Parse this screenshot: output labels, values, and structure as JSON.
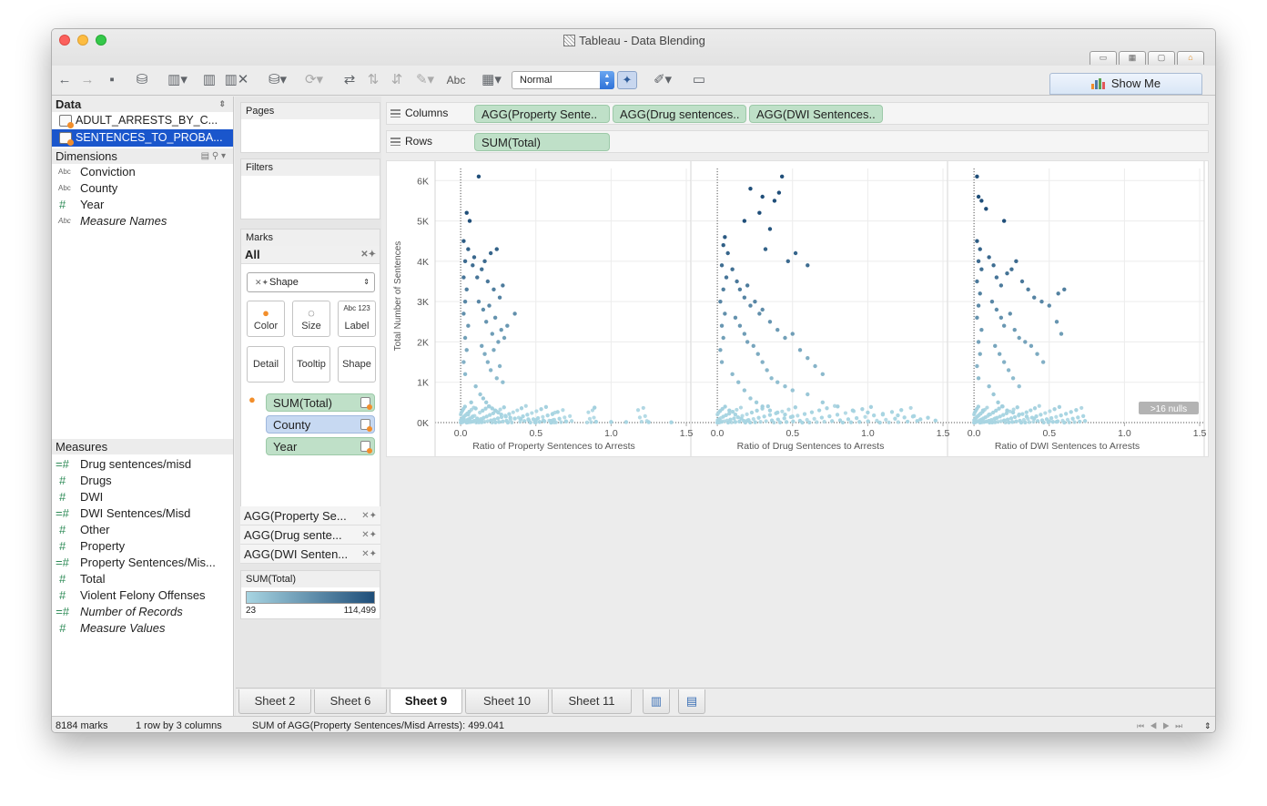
{
  "window": {
    "title": "Tableau - Data Blending"
  },
  "toolbar": {
    "mark_size_select": "Normal",
    "abc_label": "Abc",
    "show_me": "Show Me"
  },
  "data_pane": {
    "header": "Data",
    "sources": [
      {
        "name": "ADULT_ARRESTS_BY_C...",
        "selected": false
      },
      {
        "name": "SENTENCES_TO_PROBA...",
        "selected": true
      }
    ],
    "dimensions_header": "Dimensions",
    "dimensions": [
      {
        "type": "Abc",
        "label": "Conviction"
      },
      {
        "type": "Abc",
        "label": "County"
      },
      {
        "type": "#",
        "label": "Year"
      },
      {
        "type": "Abc",
        "label": "Measure Names"
      }
    ],
    "measures_header": "Measures",
    "measures": [
      {
        "type": "=#",
        "label": "Drug sentences/misd"
      },
      {
        "type": "#",
        "label": "Drugs"
      },
      {
        "type": "#",
        "label": "DWI"
      },
      {
        "type": "=#",
        "label": "DWI Sentences/Misd"
      },
      {
        "type": "#",
        "label": "Other"
      },
      {
        "type": "#",
        "label": "Property"
      },
      {
        "type": "=#",
        "label": "Property Sentences/Mis..."
      },
      {
        "type": "#",
        "label": "Total"
      },
      {
        "type": "#",
        "label": "Violent Felony Offenses"
      },
      {
        "type": "=#",
        "label": "Number of Records"
      },
      {
        "type": "#",
        "label": "Measure Values"
      }
    ]
  },
  "cards": {
    "pages": "Pages",
    "filters": "Filters",
    "marks": "Marks",
    "marks_all": "All",
    "mark_type": "Shape",
    "buttons": [
      "Color",
      "Size",
      "Label",
      "Detail",
      "Tooltip",
      "Shape"
    ],
    "label_icon": "Abc 123",
    "mark_pills": [
      "SUM(Total)",
      "County",
      "Year"
    ],
    "agg_rows": [
      "AGG(Property Se...",
      "AGG(Drug sente...",
      "AGG(DWI Senten..."
    ],
    "legend_title": "SUM(Total)",
    "legend_min": "23",
    "legend_max": "114,499",
    "legend_colors": [
      "#a8d5e2",
      "#1f4e79"
    ]
  },
  "shelves": {
    "columns_label": "Columns",
    "columns": [
      "AGG(Property Sente..",
      "AGG(Drug sentences..",
      "AGG(DWI Sentences.."
    ],
    "rows_label": "Rows",
    "rows": [
      "SUM(Total)"
    ]
  },
  "chart_data": {
    "type": "scatter",
    "ylabel": "Total Number of Sentences",
    "y_ticks": [
      "6K",
      "5K",
      "4K",
      "3K",
      "2K",
      "1K",
      "0K"
    ],
    "ylim": [
      0,
      6300
    ],
    "x_ticks": [
      "0.0",
      "0.5",
      "1.0",
      "1.5"
    ],
    "xlim": [
      -0.17,
      1.53
    ],
    "grid": true,
    "panels": [
      {
        "xlabel": "Ratio of Property Sentences to Arrests",
        "points": [
          [
            0.12,
            6100
          ],
          [
            0.04,
            5200
          ],
          [
            0.06,
            5000
          ],
          [
            0.02,
            4500
          ],
          [
            0.05,
            4300
          ],
          [
            0.03,
            4000
          ],
          [
            0.08,
            3900
          ],
          [
            0.02,
            3600
          ],
          [
            0.04,
            3300
          ],
          [
            0.03,
            3000
          ],
          [
            0.02,
            2700
          ],
          [
            0.05,
            2400
          ],
          [
            0.03,
            2100
          ],
          [
            0.04,
            1800
          ],
          [
            0.02,
            1500
          ],
          [
            0.03,
            1200
          ],
          [
            0.09,
            4100
          ],
          [
            0.11,
            3600
          ],
          [
            0.14,
            3800
          ],
          [
            0.16,
            4000
          ],
          [
            0.18,
            3500
          ],
          [
            0.2,
            4200
          ],
          [
            0.22,
            3300
          ],
          [
            0.24,
            4300
          ],
          [
            0.26,
            3100
          ],
          [
            0.28,
            3400
          ],
          [
            0.36,
            2700
          ],
          [
            0.12,
            3000
          ],
          [
            0.15,
            2800
          ],
          [
            0.17,
            2500
          ],
          [
            0.19,
            2900
          ],
          [
            0.21,
            2200
          ],
          [
            0.23,
            2600
          ],
          [
            0.25,
            2000
          ],
          [
            0.27,
            2300
          ],
          [
            0.29,
            2100
          ],
          [
            0.31,
            2400
          ],
          [
            0.14,
            1900
          ],
          [
            0.16,
            1700
          ],
          [
            0.18,
            1500
          ],
          [
            0.2,
            1300
          ],
          [
            0.22,
            1800
          ],
          [
            0.24,
            1100
          ],
          [
            0.26,
            1400
          ],
          [
            0.28,
            1000
          ],
          [
            0.1,
            900
          ],
          [
            0.13,
            700
          ],
          [
            0.15,
            600
          ],
          [
            0.17,
            500
          ],
          [
            0.19,
            400
          ],
          [
            0.21,
            350
          ],
          [
            0.23,
            300
          ],
          [
            0.25,
            250
          ],
          [
            0.27,
            200
          ],
          [
            0.3,
            150
          ],
          [
            0.33,
            120
          ],
          [
            0.36,
            100
          ],
          [
            0.4,
            90
          ],
          [
            0.45,
            80
          ],
          [
            0.5,
            60
          ],
          [
            0.55,
            50
          ],
          [
            0.6,
            40
          ],
          [
            0.7,
            30
          ],
          [
            0.9,
            20
          ],
          [
            1.0,
            15
          ],
          [
            1.1,
            12
          ],
          [
            1.25,
            10
          ],
          [
            1.4,
            8
          ],
          [
            0.89,
            370
          ],
          [
            0.05,
            200
          ],
          [
            0.08,
            150
          ],
          [
            0.11,
            100
          ],
          [
            0.14,
            80
          ],
          [
            0.06,
            60
          ],
          [
            0.09,
            40
          ],
          [
            0.12,
            30
          ],
          [
            0.07,
            500
          ],
          [
            0.1,
            350
          ],
          [
            0.02,
            100
          ]
        ]
      },
      {
        "xlabel": "Ratio of Drug Sentences to Arrests",
        "points": [
          [
            0.43,
            6100
          ],
          [
            0.41,
            5700
          ],
          [
            0.38,
            5500
          ],
          [
            0.22,
            5800
          ],
          [
            0.3,
            5600
          ],
          [
            0.18,
            5000
          ],
          [
            0.28,
            5200
          ],
          [
            0.35,
            4800
          ],
          [
            0.32,
            4300
          ],
          [
            0.52,
            4200
          ],
          [
            0.47,
            4000
          ],
          [
            0.6,
            3900
          ],
          [
            0.05,
            4600
          ],
          [
            0.04,
            4400
          ],
          [
            0.07,
            4200
          ],
          [
            0.03,
            3900
          ],
          [
            0.06,
            3600
          ],
          [
            0.04,
            3300
          ],
          [
            0.02,
            3000
          ],
          [
            0.05,
            2700
          ],
          [
            0.03,
            2400
          ],
          [
            0.04,
            2100
          ],
          [
            0.02,
            1800
          ],
          [
            0.03,
            1500
          ],
          [
            0.1,
            3800
          ],
          [
            0.13,
            3500
          ],
          [
            0.15,
            3300
          ],
          [
            0.18,
            3100
          ],
          [
            0.2,
            3400
          ],
          [
            0.22,
            2900
          ],
          [
            0.25,
            3000
          ],
          [
            0.28,
            2700
          ],
          [
            0.3,
            2800
          ],
          [
            0.35,
            2500
          ],
          [
            0.4,
            2300
          ],
          [
            0.45,
            2100
          ],
          [
            0.5,
            2200
          ],
          [
            0.55,
            1800
          ],
          [
            0.6,
            1600
          ],
          [
            0.65,
            1400
          ],
          [
            0.7,
            1200
          ],
          [
            0.12,
            2600
          ],
          [
            0.15,
            2400
          ],
          [
            0.18,
            2200
          ],
          [
            0.2,
            2000
          ],
          [
            0.24,
            1900
          ],
          [
            0.27,
            1700
          ],
          [
            0.3,
            1500
          ],
          [
            0.33,
            1300
          ],
          [
            0.36,
            1100
          ],
          [
            0.4,
            1000
          ],
          [
            0.45,
            900
          ],
          [
            0.5,
            800
          ],
          [
            0.6,
            700
          ],
          [
            0.7,
            500
          ],
          [
            0.8,
            400
          ],
          [
            0.9,
            300
          ],
          [
            1.0,
            250
          ],
          [
            1.1,
            200
          ],
          [
            1.2,
            180
          ],
          [
            1.3,
            150
          ],
          [
            1.4,
            120
          ],
          [
            0.1,
            1200
          ],
          [
            0.14,
            1000
          ],
          [
            0.18,
            800
          ],
          [
            0.22,
            600
          ],
          [
            0.26,
            500
          ],
          [
            0.3,
            400
          ],
          [
            0.35,
            300
          ],
          [
            0.4,
            250
          ],
          [
            0.45,
            200
          ],
          [
            0.5,
            150
          ],
          [
            0.08,
            300
          ],
          [
            0.12,
            200
          ],
          [
            0.16,
            100
          ],
          [
            0.2,
            50
          ],
          [
            1.45,
            50
          ],
          [
            1.35,
            80
          ]
        ]
      },
      {
        "xlabel": "Ratio of DWI Sentences to Arrests",
        "points": [
          [
            0.02,
            6100
          ],
          [
            0.03,
            5600
          ],
          [
            0.05,
            5500
          ],
          [
            0.08,
            5300
          ],
          [
            0.2,
            5000
          ],
          [
            0.02,
            4500
          ],
          [
            0.04,
            4300
          ],
          [
            0.03,
            4000
          ],
          [
            0.05,
            3800
          ],
          [
            0.02,
            3500
          ],
          [
            0.04,
            3200
          ],
          [
            0.03,
            2900
          ],
          [
            0.02,
            2600
          ],
          [
            0.05,
            2300
          ],
          [
            0.03,
            2000
          ],
          [
            0.04,
            1700
          ],
          [
            0.02,
            1400
          ],
          [
            0.03,
            1100
          ],
          [
            0.1,
            4100
          ],
          [
            0.13,
            3900
          ],
          [
            0.15,
            3600
          ],
          [
            0.18,
            3400
          ],
          [
            0.22,
            3700
          ],
          [
            0.25,
            3800
          ],
          [
            0.28,
            4000
          ],
          [
            0.32,
            3500
          ],
          [
            0.36,
            3300
          ],
          [
            0.4,
            3100
          ],
          [
            0.45,
            3000
          ],
          [
            0.5,
            2900
          ],
          [
            0.56,
            3200
          ],
          [
            0.6,
            3300
          ],
          [
            0.55,
            2500
          ],
          [
            0.58,
            2200
          ],
          [
            0.12,
            3000
          ],
          [
            0.15,
            2800
          ],
          [
            0.18,
            2600
          ],
          [
            0.2,
            2400
          ],
          [
            0.24,
            2700
          ],
          [
            0.27,
            2300
          ],
          [
            0.3,
            2100
          ],
          [
            0.34,
            2000
          ],
          [
            0.38,
            1900
          ],
          [
            0.42,
            1700
          ],
          [
            0.46,
            1500
          ],
          [
            0.14,
            1900
          ],
          [
            0.17,
            1700
          ],
          [
            0.2,
            1500
          ],
          [
            0.23,
            1300
          ],
          [
            0.26,
            1100
          ],
          [
            0.3,
            900
          ],
          [
            0.1,
            900
          ],
          [
            0.13,
            700
          ],
          [
            0.16,
            500
          ],
          [
            0.19,
            400
          ],
          [
            0.22,
            300
          ],
          [
            0.26,
            250
          ],
          [
            0.3,
            200
          ],
          [
            0.35,
            150
          ],
          [
            0.4,
            100
          ],
          [
            0.06,
            300
          ],
          [
            0.1,
            200
          ],
          [
            0.14,
            100
          ],
          [
            0.2,
            50
          ],
          [
            0.5,
            30
          ],
          [
            0.55,
            20
          ]
        ]
      }
    ],
    "nulls_badge": ">16 nulls"
  },
  "sheet_tabs": [
    {
      "label": "Sheet 2",
      "active": false
    },
    {
      "label": "Sheet 6",
      "active": false
    },
    {
      "label": "Sheet 9",
      "active": true
    },
    {
      "label": "Sheet 10",
      "active": false
    },
    {
      "label": "Sheet 11",
      "active": false
    }
  ],
  "status_bar": {
    "marks": "8184 marks",
    "layout": "1 row by 3 columns",
    "summary": "SUM of AGG(Property Sentences/Misd Arrests): 499.041"
  }
}
